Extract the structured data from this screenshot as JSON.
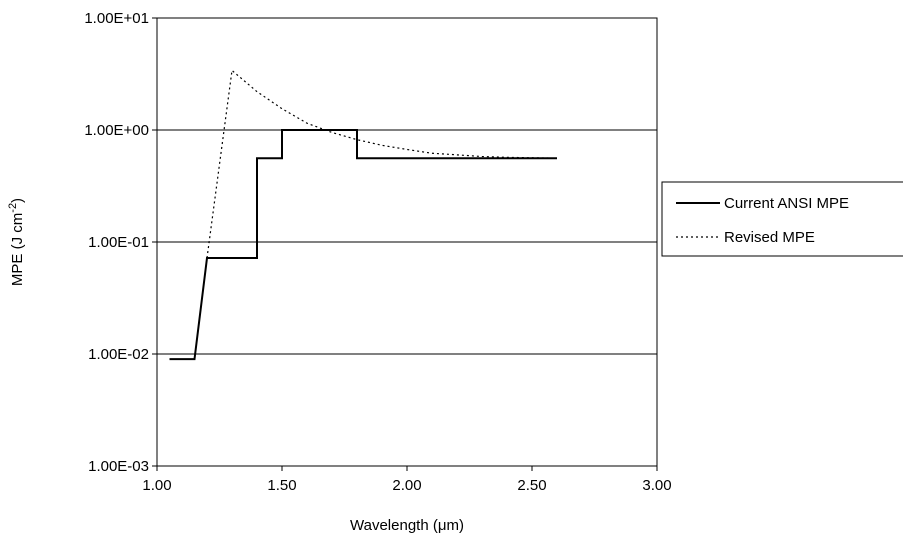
{
  "chart_data": {
    "type": "line",
    "xlabel": "Wavelength (μm)",
    "ylabel": {
      "text": "MPE (J cm",
      "superscript": "-2",
      "close": ")"
    },
    "xlim": [
      1.0,
      3.0
    ],
    "ylim": [
      0.001,
      10
    ],
    "y_scale": "log",
    "grid": "horizontal major gridlines",
    "legend_position": "right",
    "x_ticks": [
      1.0,
      1.5,
      2.0,
      2.5,
      3.0
    ],
    "x_tick_labels": [
      "1.00",
      "1.50",
      "2.00",
      "2.50",
      "3.00"
    ],
    "y_ticks": [
      0.001,
      0.01,
      0.1,
      1,
      10
    ],
    "y_tick_labels": [
      "1.00E-03",
      "1.00E-02",
      "1.00E-01",
      "1.00E+00",
      "1.00E+01"
    ],
    "series": [
      {
        "name": "Current ANSI MPE",
        "style": "solid",
        "color": "#000000",
        "points": [
          [
            1.05,
            0.009
          ],
          [
            1.15,
            0.009
          ],
          [
            1.2,
            0.072
          ],
          [
            1.4,
            0.072
          ],
          [
            1.4,
            0.56
          ],
          [
            1.5,
            0.56
          ],
          [
            1.5,
            1.0
          ],
          [
            1.8,
            1.0
          ],
          [
            1.8,
            0.56
          ],
          [
            2.6,
            0.56
          ]
        ]
      },
      {
        "name": "Revised MPE",
        "style": "dotted",
        "color": "#000000",
        "points": [
          [
            1.2,
            0.072
          ],
          [
            1.3,
            3.4
          ],
          [
            1.4,
            2.2
          ],
          [
            1.5,
            1.55
          ],
          [
            1.6,
            1.15
          ],
          [
            1.7,
            0.95
          ],
          [
            1.8,
            0.82
          ],
          [
            1.9,
            0.73
          ],
          [
            2.0,
            0.67
          ],
          [
            2.1,
            0.62
          ],
          [
            2.2,
            0.6
          ],
          [
            2.3,
            0.58
          ],
          [
            2.4,
            0.57
          ],
          [
            2.5,
            0.565
          ],
          [
            2.6,
            0.56
          ]
        ]
      }
    ]
  }
}
